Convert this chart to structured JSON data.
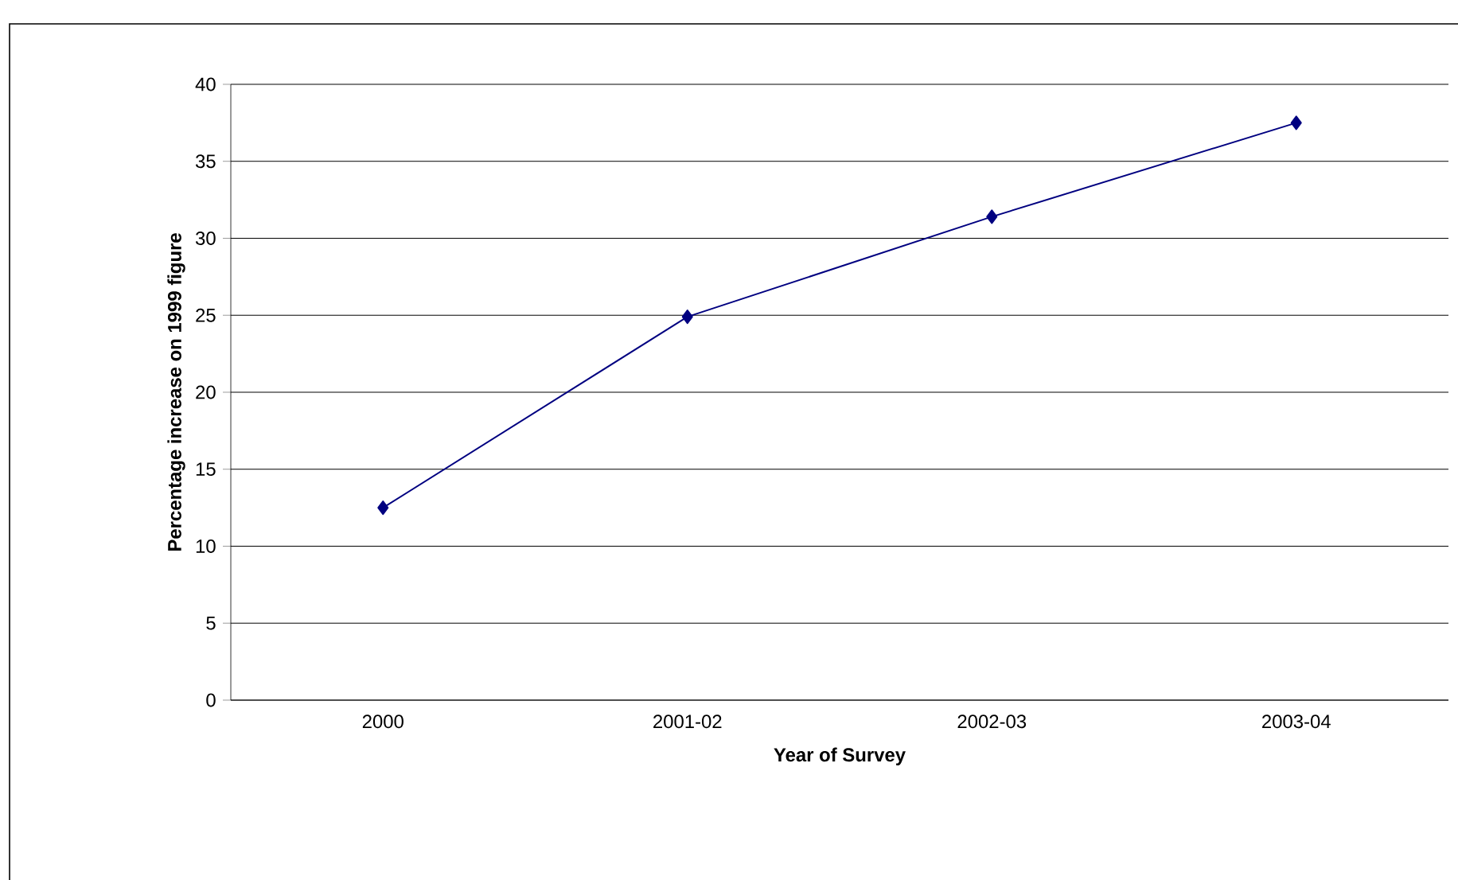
{
  "chart_data": {
    "type": "line",
    "xlabel": "Year of Survey",
    "ylabel": "Percentage increase on 1999 figure",
    "categories": [
      "2000",
      "2001-02",
      "2002-03",
      "2003-04"
    ],
    "series": [
      {
        "color": "#000080",
        "values": [
          12.5,
          24.9,
          31.4,
          37.5
        ]
      }
    ],
    "ylim": [
      0,
      40
    ],
    "yticks": [
      0,
      5,
      10,
      15,
      20,
      25,
      30,
      35,
      40
    ],
    "grid": "y",
    "marker": "diamond",
    "line_style": "solid"
  }
}
